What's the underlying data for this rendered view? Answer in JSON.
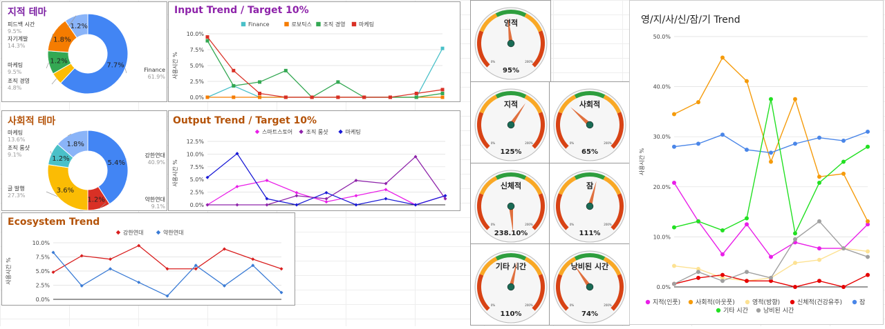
{
  "colors": {
    "purple": "#7b1fa2",
    "brown": "#b45309",
    "blue": "#4285f4",
    "orange": "#f57c00",
    "green": "#34a853",
    "red": "#d93025",
    "teal": "#4ac0c8",
    "yellow": "#fbbc04",
    "lightblue": "#8ab4f8"
  },
  "chart_data": [
    {
      "id": "donut1",
      "type": "pie",
      "title": "지적 테마",
      "slices": [
        {
          "label": "Finance",
          "pct_label": "61.9%",
          "value": 61.9,
          "inner": "7.7%",
          "color": "#4285f4"
        },
        {
          "label": "조직 경영",
          "pct_label": "4.8%",
          "value": 4.8,
          "inner": "",
          "color": "#fbbc04"
        },
        {
          "label": "마케팅",
          "pct_label": "9.5%",
          "value": 9.5,
          "inner": "1.2%",
          "color": "#34a853"
        },
        {
          "label": "자기계발",
          "pct_label": "14.3%",
          "value": 14.3,
          "inner": "1.8%",
          "color": "#f57c00"
        },
        {
          "label": "피드백 시간",
          "pct_label": "9.5%",
          "value": 9.5,
          "inner": "1.2%",
          "color": "#8ab4f8"
        }
      ]
    },
    {
      "id": "donut2",
      "type": "pie",
      "title": "사회적 테마",
      "slices": [
        {
          "label": "강한연대",
          "pct_label": "40.9%",
          "value": 40.9,
          "inner": "5.4%",
          "color": "#4285f4"
        },
        {
          "label": "약한연대",
          "pct_label": "9.1%",
          "value": 9.1,
          "inner": "1.2%",
          "color": "#d93025"
        },
        {
          "label": "글 발행",
          "pct_label": "27.3%",
          "value": 27.3,
          "inner": "3.6%",
          "color": "#fbbc04"
        },
        {
          "label": "조직 룸샷",
          "pct_label": "9.1%",
          "value": 9.1,
          "inner": "1.2%",
          "color": "#4ac0c8"
        },
        {
          "label": "마케팅",
          "pct_label": "13.6%",
          "value": 13.6,
          "inner": "1.8%",
          "color": "#8ab4f8"
        }
      ]
    },
    {
      "id": "input",
      "type": "line",
      "title": "Input Trend / Target 10%",
      "ylabel": "사용시간 %",
      "ylim": [
        0,
        10
      ],
      "ticks": [
        "0.0%",
        "2.5%",
        "5.0%",
        "7.5%",
        "10.0%"
      ],
      "markers": "square",
      "series": [
        {
          "name": "Finance",
          "color": "#4ac0c8",
          "values": [
            0,
            1.8,
            0,
            0,
            0,
            0,
            0,
            0,
            0,
            7.7
          ]
        },
        {
          "name": "로보틱스",
          "color": "#f57c00",
          "values": [
            0,
            0,
            0,
            0,
            0,
            0,
            0,
            0,
            0,
            0
          ]
        },
        {
          "name": "조직 경영",
          "color": "#34a853",
          "values": [
            8.9,
            1.8,
            2.4,
            4.2,
            0,
            2.4,
            0,
            0,
            0,
            0.6
          ]
        },
        {
          "name": "마케팅",
          "color": "#d93025",
          "values": [
            9.5,
            4.2,
            0.6,
            0,
            0,
            0,
            0,
            0,
            0.6,
            1.2
          ]
        }
      ]
    },
    {
      "id": "output",
      "type": "line",
      "title": "Output Trend / Target 10%",
      "ylabel": "사용시간 %",
      "ylim": [
        0,
        12.5
      ],
      "ticks": [
        "0.0%",
        "2.5%",
        "5.0%",
        "7.5%",
        "10.0%",
        "12.5%"
      ],
      "markers": "diamond",
      "series": [
        {
          "name": "스마트스토어",
          "color": "#e91ee8",
          "values": [
            0,
            3.6,
            4.8,
            2.4,
            0.6,
            1.8,
            3,
            0,
            1.8
          ]
        },
        {
          "name": "조직 룸샷",
          "color": "#8e24aa",
          "values": [
            0,
            0,
            0,
            1.8,
            1.2,
            4.8,
            4.2,
            9.5,
            1.2
          ]
        },
        {
          "name": "마케팅",
          "color": "#1a1ad6",
          "values": [
            5.4,
            10.1,
            1.2,
            0,
            2.4,
            0,
            1.2,
            0,
            1.8
          ]
        }
      ]
    },
    {
      "id": "eco",
      "type": "line",
      "title": "Ecosystem Trend",
      "ylabel": "사용시간 %",
      "ylim": [
        0,
        10
      ],
      "ticks": [
        "0.0%",
        "2.5%",
        "5.0%",
        "7.5%",
        "10.0%"
      ],
      "markers": "diamond",
      "series": [
        {
          "name": "강한연대",
          "color": "#d91e1e",
          "values": [
            4.8,
            7.7,
            7.1,
            9.5,
            5.4,
            5.4,
            8.9,
            7.1,
            5.4
          ]
        },
        {
          "name": "약한연대",
          "color": "#3a7bd5",
          "values": [
            8.3,
            2.4,
            5.4,
            3,
            0.6,
            6,
            2.4,
            6,
            1.2
          ]
        }
      ]
    },
    {
      "id": "big",
      "type": "line",
      "title": "영/지/사/신/잠/기 Trend",
      "ylabel": "사용시간 %",
      "ylim": [
        0,
        50
      ],
      "ticks": [
        "0.0%",
        "10.0%",
        "20.0%",
        "30.0%",
        "40.0%",
        "50.0%"
      ],
      "markers": "circle",
      "series": [
        {
          "name": "지적(인풋)",
          "color": "#e91ee8",
          "values": [
            20.8,
            13.1,
            6.5,
            12.5,
            6,
            8.9,
            7.7,
            7.7,
            12.5
          ]
        },
        {
          "name": "사회적(아웃풋)",
          "color": "#f59b0b",
          "values": [
            34.5,
            36.9,
            45.8,
            41.1,
            25,
            37.5,
            22,
            22.6,
            13.1
          ]
        },
        {
          "name": "영적(방향)",
          "color": "#fde293",
          "values": [
            4.2,
            3.6,
            1.8,
            1.2,
            1.8,
            4.8,
            5.4,
            7.7,
            7.1
          ]
        },
        {
          "name": "신체적(건강유주)",
          "color": "#e60000",
          "values": [
            0.6,
            1.8,
            2.4,
            1.2,
            1.2,
            0,
            1.2,
            0,
            2.4
          ]
        },
        {
          "name": "잠",
          "color": "#4a86e8",
          "values": [
            28,
            28.6,
            30.4,
            27.4,
            26.8,
            28.6,
            29.8,
            29.2,
            31
          ]
        },
        {
          "name": "기타 시간",
          "color": "#22e022",
          "values": [
            11.9,
            13.1,
            11.3,
            13.7,
            37.5,
            10.7,
            20.8,
            25,
            28
          ]
        },
        {
          "name": "낭비된 시간",
          "color": "#a0a0a0",
          "values": [
            0.6,
            3,
            1.2,
            3,
            1.8,
            9.5,
            13.1,
            7.7,
            6
          ]
        }
      ]
    }
  ],
  "gauges": [
    {
      "label": "영적",
      "value_text": "95%",
      "value": 95,
      "min": "0%",
      "max": "200%"
    },
    {
      "label": "지적",
      "value_text": "125%",
      "value": 125,
      "min": "0%",
      "max": "200%"
    },
    {
      "label": "사회적",
      "value_text": "65%",
      "value": 65,
      "min": "0%",
      "max": "200%"
    },
    {
      "label": "신체적",
      "value_text": "238.10%",
      "value": 238.1,
      "min": "0%",
      "max": "200%"
    },
    {
      "label": "잠",
      "value_text": "111%",
      "value": 111,
      "min": "0%",
      "max": "200%"
    },
    {
      "label": "기타 시간",
      "value_text": "110%",
      "value": 110,
      "min": "0%",
      "max": "200%"
    },
    {
      "label": "낭비된 시간",
      "value_text": "74%",
      "value": 74,
      "min": "0%",
      "max": "200%"
    }
  ]
}
